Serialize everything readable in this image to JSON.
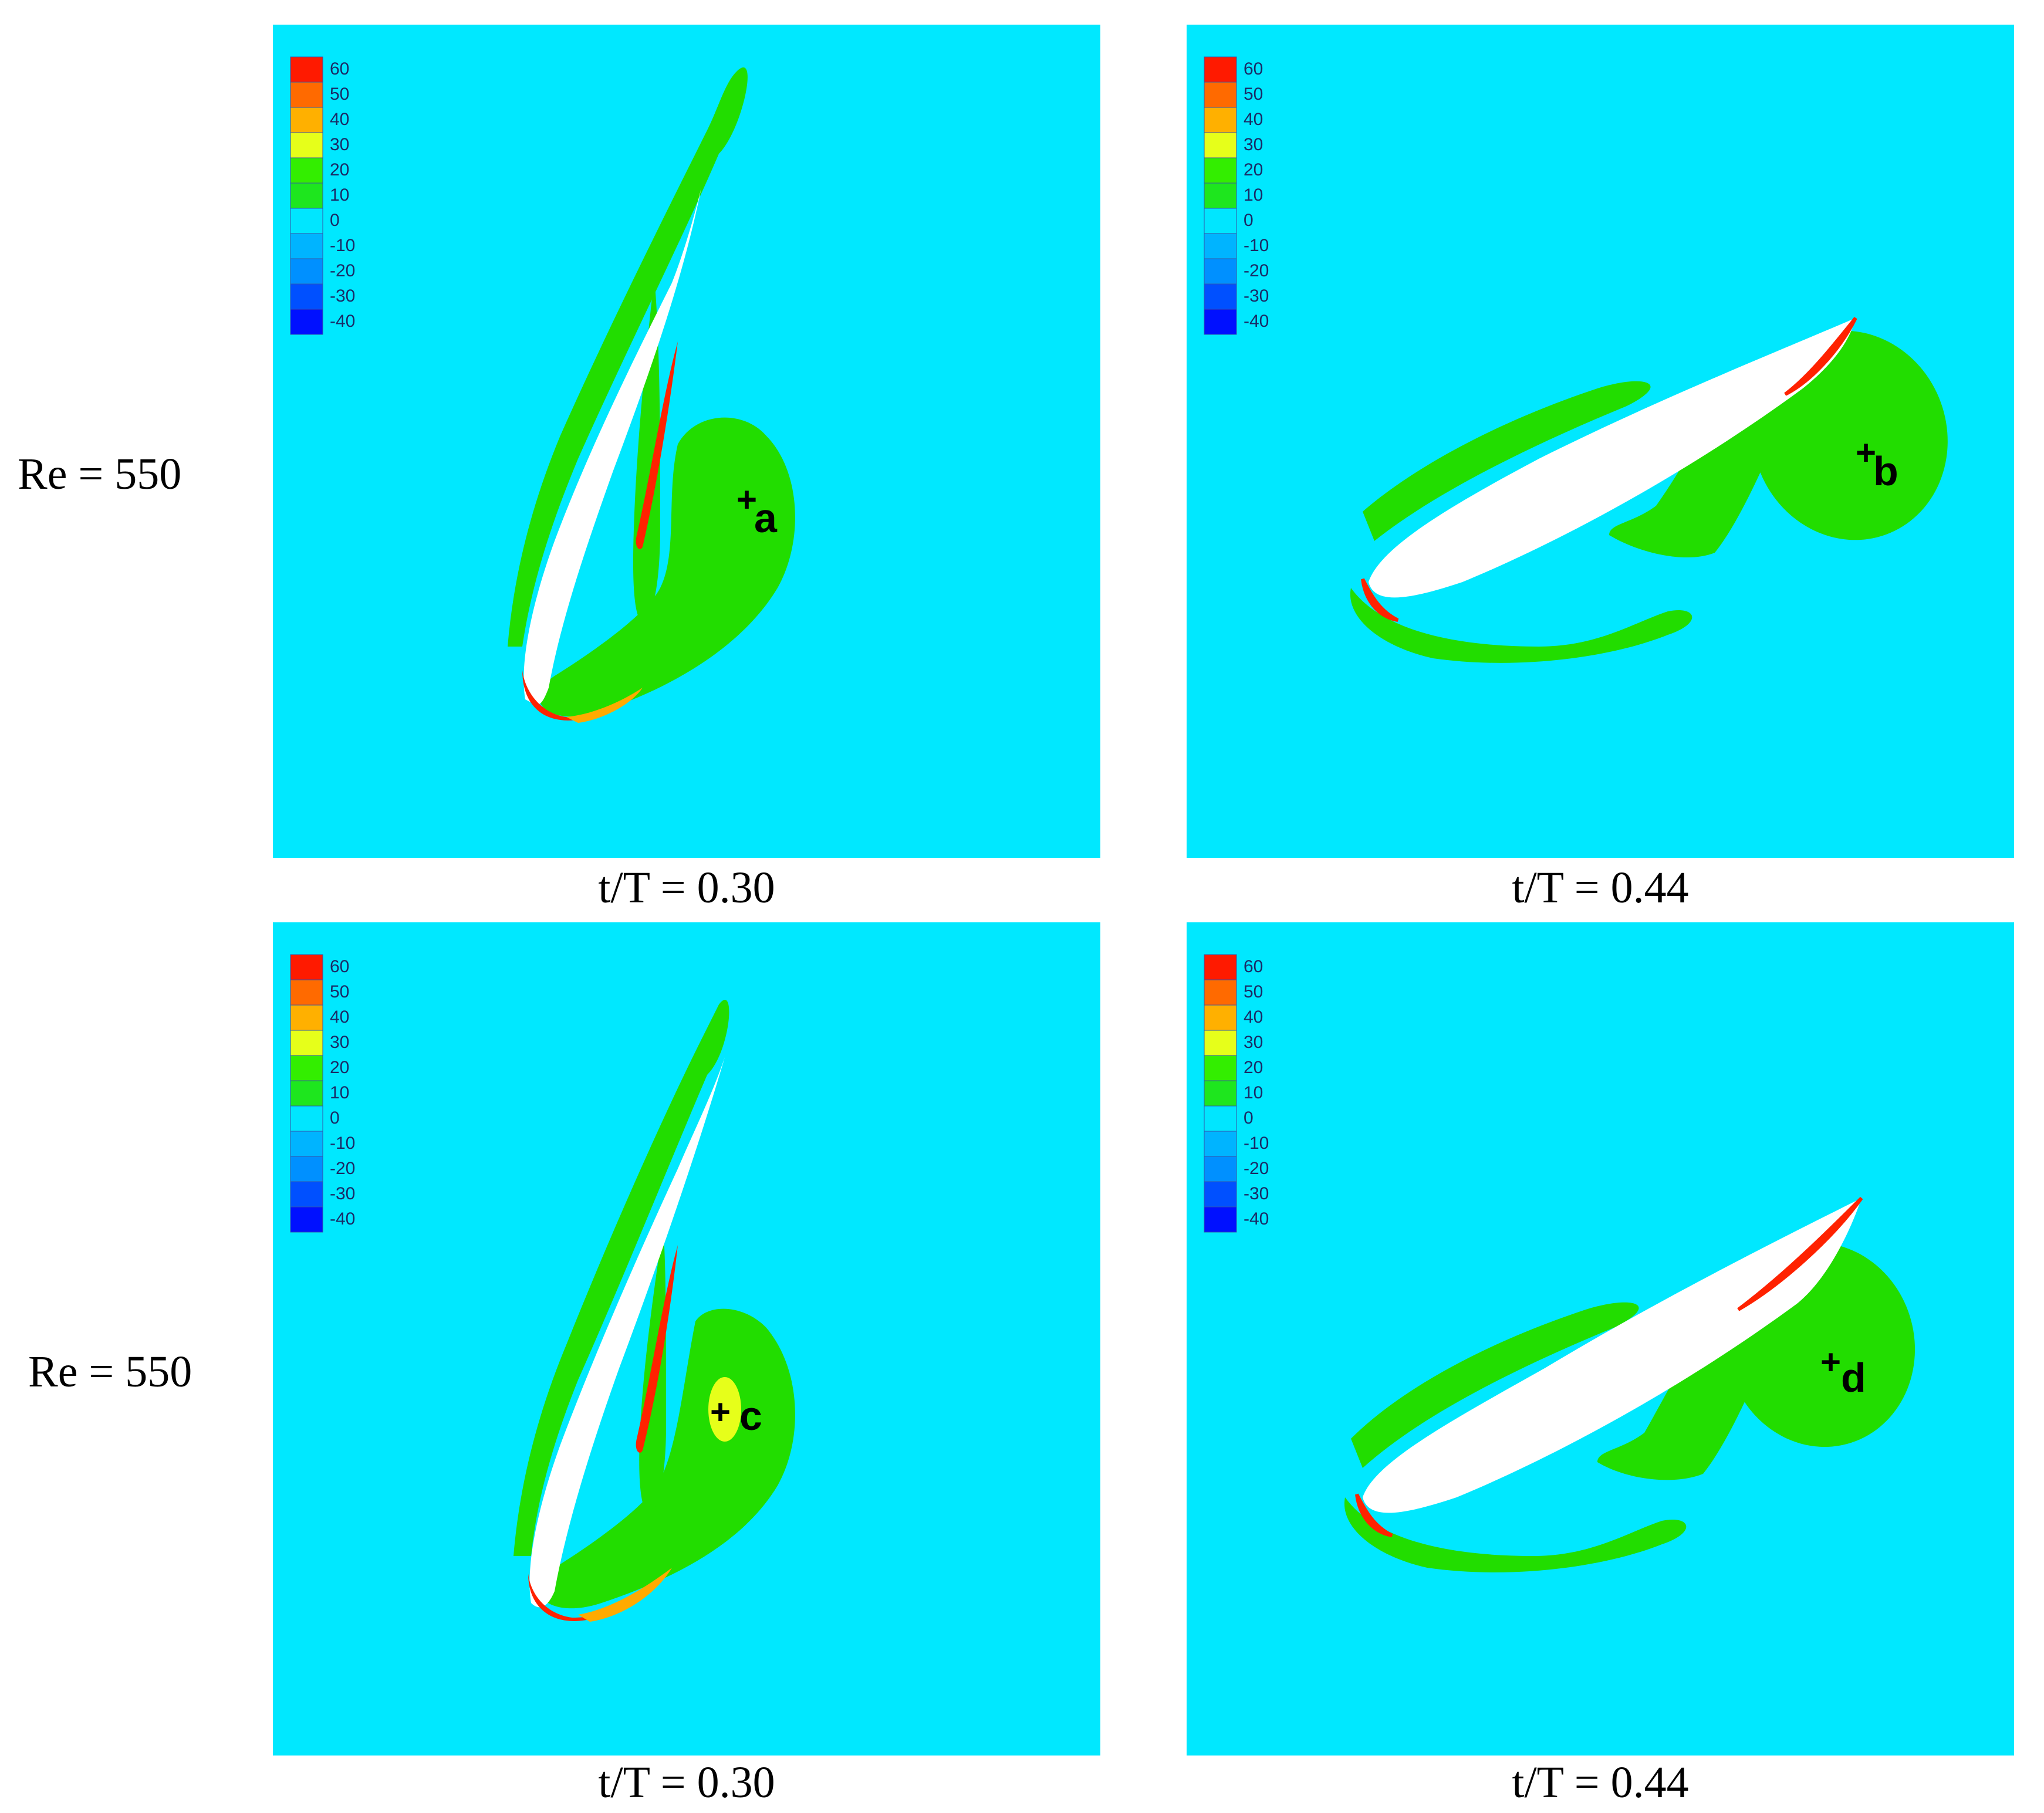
{
  "row_labels": [
    "Re = 550",
    "Re = 550"
  ],
  "legend_levels": [
    "60",
    "50",
    "40",
    "30",
    "20",
    "10",
    "0",
    "-10",
    "-20",
    "-30",
    "-40"
  ],
  "legend_colors": [
    "#ff1a00",
    "#ff6a00",
    "#ffb000",
    "#e6ff1a",
    "#33ee00",
    "#1ee61e",
    "#00e6ff",
    "#00b4ff",
    "#0090ff",
    "#0050ff",
    "#0010ff"
  ],
  "colors": {
    "background": "#00e8ff",
    "vortex": "#22dd00",
    "airfoil": "#ffffff",
    "shear": "#ff2200",
    "shear_mid": "#ffaa00"
  },
  "panels": [
    {
      "marker": "a",
      "caption": "t/T = 0.30"
    },
    {
      "marker": "b",
      "caption": "t/T = 0.44"
    },
    {
      "marker": "c",
      "caption": "t/T = 0.30"
    },
    {
      "marker": "d",
      "caption": "t/T = 0.44"
    }
  ]
}
